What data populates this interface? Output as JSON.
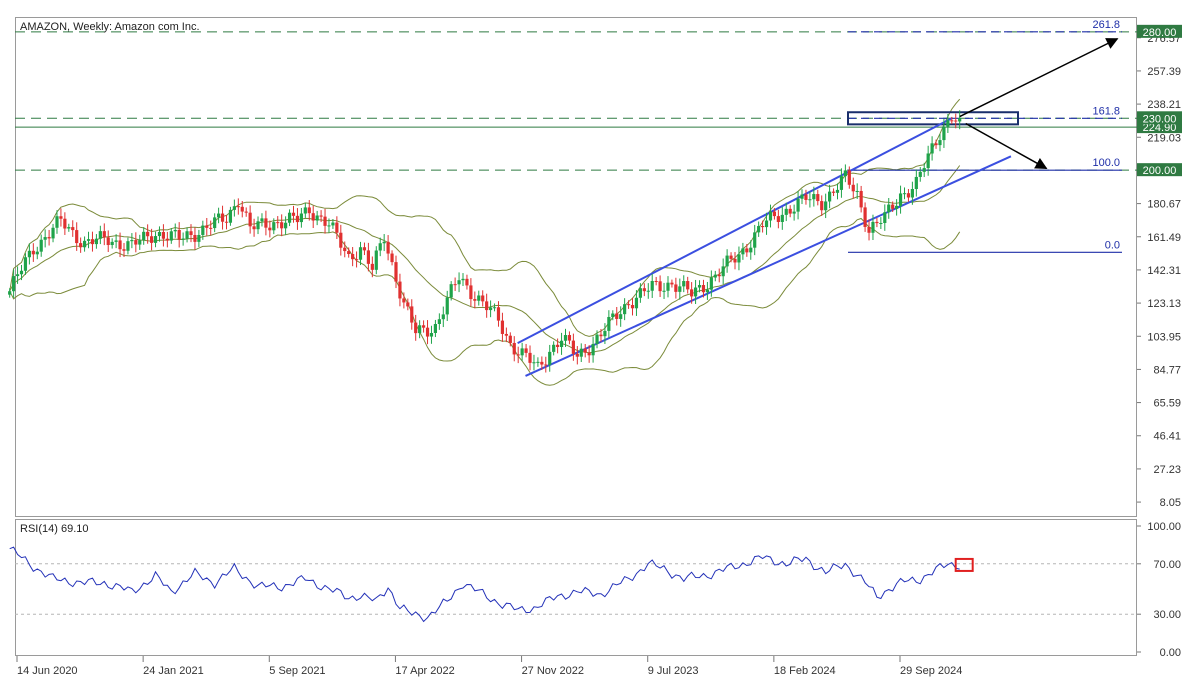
{
  "chart_data": [
    {
      "type": "candlestick",
      "title": "AMAZON, Weekly:  Amazon com Inc.",
      "ylim": [
        0,
        288
      ],
      "y_ticks": [
        8.05,
        27.23,
        46.41,
        65.59,
        84.77,
        103.95,
        123.13,
        142.31,
        161.49,
        180.67,
        200.0,
        219.03,
        224.9,
        230.0,
        238.21,
        257.39,
        276.57,
        280.0
      ],
      "x_tick_labels": [
        "14 Jun 2020",
        "24 Jan 2021",
        "5 Sep 2021",
        "17 Apr 2022",
        "27 Nov 2022",
        "9 Jul 2023",
        "18 Feb 2024",
        "29 Sep 2024"
      ],
      "x_tick_dates": [
        "2020-06-14",
        "2021-01-24",
        "2021-09-05",
        "2022-04-17",
        "2022-11-27",
        "2023-07-09",
        "2024-02-18",
        "2024-09-29"
      ],
      "close_path": [
        [
          "2020-06-01",
          130
        ],
        [
          "2020-07-13",
          155
        ],
        [
          "2020-08-31",
          170
        ],
        [
          "2020-10-12",
          158
        ],
        [
          "2020-11-23",
          160
        ],
        [
          "2021-01-04",
          156
        ],
        [
          "2021-02-15",
          164
        ],
        [
          "2021-03-29",
          160
        ],
        [
          "2021-05-10",
          166
        ],
        [
          "2021-06-21",
          172
        ],
        [
          "2021-07-12",
          184
        ],
        [
          "2021-08-02",
          166
        ],
        [
          "2021-09-13",
          170
        ],
        [
          "2021-10-25",
          171
        ],
        [
          "2021-11-15",
          178
        ],
        [
          "2021-12-20",
          168
        ],
        [
          "2022-01-24",
          150
        ],
        [
          "2022-02-14",
          155
        ],
        [
          "2022-03-07",
          142
        ],
        [
          "2022-03-28",
          162
        ],
        [
          "2022-05-02",
          122
        ],
        [
          "2022-05-23",
          106
        ],
        [
          "2022-06-27",
          110
        ],
        [
          "2022-08-08",
          138
        ],
        [
          "2022-09-05",
          128
        ],
        [
          "2022-10-17",
          113
        ],
        [
          "2022-11-07",
          100
        ],
        [
          "2022-12-26",
          85
        ],
        [
          "2023-01-16",
          96
        ],
        [
          "2023-02-06",
          103
        ],
        [
          "2023-03-06",
          92
        ],
        [
          "2023-04-17",
          105
        ],
        [
          "2023-06-05",
          124
        ],
        [
          "2023-07-17",
          132
        ],
        [
          "2023-08-21",
          135
        ],
        [
          "2023-09-25",
          128
        ],
        [
          "2023-11-06",
          139
        ],
        [
          "2023-12-18",
          151
        ],
        [
          "2024-01-29",
          168
        ],
        [
          "2024-03-11",
          177
        ],
        [
          "2024-04-15",
          183
        ],
        [
          "2024-05-13",
          182
        ],
        [
          "2024-06-24",
          195
        ],
        [
          "2024-07-15",
          186
        ],
        [
          "2024-08-05",
          166
        ],
        [
          "2024-09-02",
          172
        ],
        [
          "2024-09-30",
          186
        ],
        [
          "2024-10-28",
          192
        ],
        [
          "2024-11-18",
          207
        ],
        [
          "2024-12-09",
          222
        ],
        [
          "2024-12-30",
          232
        ],
        [
          "2025-01-13",
          225
        ]
      ],
      "overlays": [
        {
          "name": "Bollinger Bands",
          "color": "#7b8b3a"
        },
        {
          "name": "Ascending channel",
          "color": "#3b4fe0"
        },
        {
          "name": "Fibonacci expansion",
          "color": "#1f2fa8",
          "levels": [
            {
              "label": "0.0",
              "value": 152.5
            },
            {
              "label": "100.0",
              "value": 200.0
            },
            {
              "label": "161.8",
              "value": 230.0
            },
            {
              "label": "261.8",
              "value": 280.0
            }
          ]
        }
      ],
      "horizontal_levels": [
        {
          "value": 280.0,
          "label": "280.00",
          "style": "dashed"
        },
        {
          "value": 230.0,
          "label": "230.00",
          "style": "dashed"
        },
        {
          "value": 224.9,
          "label": "224.90",
          "style": "solid"
        },
        {
          "value": 200.0,
          "label": "200.00",
          "style": "dashed"
        }
      ],
      "colors": {
        "up": "#1fa34a",
        "down": "#e03030",
        "level": "#2f7a42",
        "channel": "#3b4fe0",
        "fib": "#1f2fa8",
        "bands": "#7b8b3a"
      }
    },
    {
      "type": "line",
      "title": "RSI(14) 69.10",
      "ylim": [
        0,
        100
      ],
      "y_ticks": [
        0.0,
        30.0,
        70.0,
        100.0
      ],
      "y_tick_labels": [
        "0.00",
        "30.00",
        "70.00",
        "100.00"
      ],
      "reference_lines": [
        30,
        70
      ],
      "series": [
        {
          "color": "#2331b8",
          "points": [
            [
              "2020-06-01",
              82
            ],
            [
              "2020-07-06",
              70
            ],
            [
              "2020-08-17",
              58
            ],
            [
              "2020-10-05",
              55
            ],
            [
              "2020-11-16",
              55
            ],
            [
              "2021-01-04",
              48
            ],
            [
              "2021-02-15",
              60
            ],
            [
              "2021-03-15",
              48
            ],
            [
              "2021-04-26",
              62
            ],
            [
              "2021-05-31",
              55
            ],
            [
              "2021-07-05",
              66
            ],
            [
              "2021-08-16",
              52
            ],
            [
              "2021-09-27",
              52
            ],
            [
              "2021-11-08",
              58
            ],
            [
              "2021-12-20",
              50
            ],
            [
              "2022-01-24",
              43
            ],
            [
              "2022-02-14",
              45
            ],
            [
              "2022-03-14",
              40
            ],
            [
              "2022-04-04",
              52
            ],
            [
              "2022-04-25",
              35
            ],
            [
              "2022-05-16",
              30
            ],
            [
              "2022-06-13",
              28
            ],
            [
              "2022-07-18",
              40
            ],
            [
              "2022-08-15",
              55
            ],
            [
              "2022-09-26",
              44
            ],
            [
              "2022-10-24",
              38
            ],
            [
              "2022-11-21",
              33
            ],
            [
              "2022-12-19",
              35
            ],
            [
              "2023-01-30",
              44
            ],
            [
              "2023-03-06",
              48
            ],
            [
              "2023-04-17",
              46
            ],
            [
              "2023-06-05",
              58
            ],
            [
              "2023-07-10",
              70
            ],
            [
              "2023-08-07",
              66
            ],
            [
              "2023-09-11",
              58
            ],
            [
              "2023-10-30",
              62
            ],
            [
              "2023-12-11",
              68
            ],
            [
              "2024-01-29",
              75
            ],
            [
              "2024-03-11",
              70
            ],
            [
              "2024-04-15",
              74
            ],
            [
              "2024-05-20",
              63
            ],
            [
              "2024-06-24",
              70
            ],
            [
              "2024-07-29",
              55
            ],
            [
              "2024-08-19",
              44
            ],
            [
              "2024-09-09",
              50
            ],
            [
              "2024-10-07",
              56
            ],
            [
              "2024-11-04",
              58
            ],
            [
              "2024-11-25",
              63
            ],
            [
              "2024-12-23",
              70
            ],
            [
              "2025-01-13",
              69.1
            ]
          ]
        }
      ],
      "x_tick_labels": [
        "14 Jun 2020",
        "24 Jan 2021",
        "5 Sep 2021",
        "17 Apr 2022",
        "27 Nov 2022",
        "9 Jul 2023",
        "18 Feb 2024",
        "29 Sep 2024"
      ]
    }
  ]
}
